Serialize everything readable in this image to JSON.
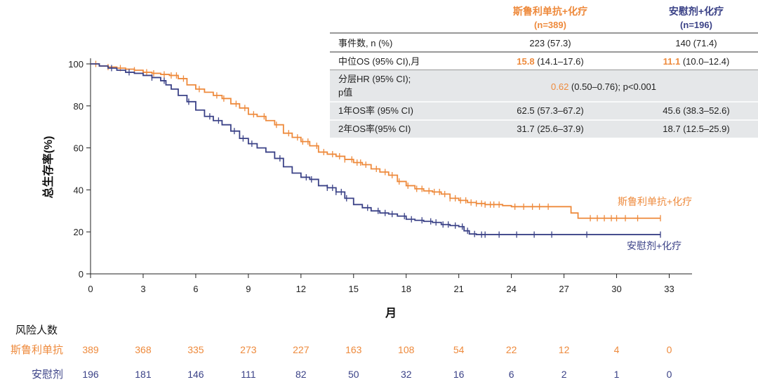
{
  "colors": {
    "orange": "#ee8a3c",
    "navy": "#3b4287",
    "grid": "#333333",
    "shade": "#e5e7e9"
  },
  "table": {
    "col1_header": "斯鲁利单抗+化疗",
    "col1_n": "(n=389)",
    "col2_header": "安慰剂+化疗",
    "col2_n": "(n=196)",
    "rows": [
      {
        "label": "事件数, n (%)",
        "v1": "223 (57.3)",
        "v2": "140 (71.4)"
      },
      {
        "label": "中位OS (95% CI),月",
        "v1_bold": "15.8",
        "v1_rest": " (14.1–17.6)",
        "v2_bold": "11.1",
        "v2_rest": " (10.0–12.4)"
      },
      {
        "label": "分层HR (95% CI);",
        "label2": "p值",
        "hr_val": "0.62",
        "hr_rest": " (0.50–0.76); p<0.001"
      },
      {
        "label": "1年OS率 (95% CI)",
        "v1": "62.5 (57.3–67.2)",
        "v2": "45.6 (38.3–52.6)"
      },
      {
        "label": "2年OS率(95% CI)",
        "v1": "31.7 (25.6–37.9)",
        "v2": "18.7 (12.5–25.9)"
      }
    ]
  },
  "chart_data": {
    "type": "line",
    "title": "",
    "xlabel": "月",
    "ylabel": "总生存率(%)",
    "xlim": [
      0,
      33
    ],
    "ylim": [
      0,
      100
    ],
    "x_ticks": [
      0,
      3,
      6,
      9,
      12,
      15,
      18,
      21,
      24,
      27,
      30,
      33
    ],
    "y_ticks": [
      0,
      20,
      40,
      60,
      80,
      100
    ],
    "series": [
      {
        "name": "斯鲁利单抗+化疗",
        "label": "斯鲁利单抗+化疗",
        "color": "#ee8a3c",
        "points": [
          [
            0,
            100
          ],
          [
            0.5,
            99
          ],
          [
            1,
            98.5
          ],
          [
            1.5,
            98
          ],
          [
            2,
            97.5
          ],
          [
            2.5,
            97
          ],
          [
            3,
            96
          ],
          [
            3.5,
            95.5
          ],
          [
            4,
            95
          ],
          [
            4.5,
            94.5
          ],
          [
            5,
            93
          ],
          [
            5.5,
            90
          ],
          [
            6,
            88
          ],
          [
            6.5,
            86.5
          ],
          [
            7,
            85
          ],
          [
            7.5,
            83.5
          ],
          [
            8,
            81
          ],
          [
            8.5,
            79
          ],
          [
            9,
            76
          ],
          [
            9.5,
            75
          ],
          [
            10,
            73
          ],
          [
            10.5,
            71
          ],
          [
            11,
            67
          ],
          [
            11.5,
            65
          ],
          [
            12,
            63
          ],
          [
            12.5,
            61
          ],
          [
            13,
            58
          ],
          [
            13.5,
            57
          ],
          [
            14,
            56
          ],
          [
            14.5,
            54.5
          ],
          [
            15,
            53
          ],
          [
            15.5,
            52
          ],
          [
            16,
            50
          ],
          [
            16.5,
            48.5
          ],
          [
            17,
            47
          ],
          [
            17.5,
            44
          ],
          [
            18,
            42
          ],
          [
            18.5,
            40.5
          ],
          [
            19,
            39.5
          ],
          [
            19.5,
            39
          ],
          [
            20,
            38
          ],
          [
            20.5,
            36
          ],
          [
            21,
            35
          ],
          [
            21.5,
            34
          ],
          [
            22,
            33.5
          ],
          [
            22.5,
            33
          ],
          [
            23,
            33
          ],
          [
            23.5,
            32.5
          ],
          [
            24,
            32
          ],
          [
            25,
            32
          ],
          [
            26,
            32
          ],
          [
            27,
            32
          ],
          [
            27.3,
            32
          ],
          [
            27.4,
            29
          ],
          [
            27.7,
            29
          ],
          [
            27.8,
            26.5
          ],
          [
            29,
            26.5
          ],
          [
            30,
            26.5
          ],
          [
            31,
            26.5
          ],
          [
            32.5,
            26.5
          ]
        ],
        "censor_x": [
          0.3,
          1,
          1.7,
          2.5,
          3.2,
          3.6,
          4.2,
          4.6,
          4.9,
          5.3,
          6.2,
          7.2,
          7.6,
          8.3,
          8.8,
          9.3,
          9.9,
          10.6,
          11.3,
          11.8,
          12.1,
          12.4,
          12.9,
          13.3,
          13.8,
          14.2,
          14.5,
          14.9,
          15.2,
          15.4,
          15.7,
          16.3,
          16.8,
          17.2,
          17.6,
          18.1,
          18.6,
          18.9,
          19.3,
          19.6,
          19.9,
          20.2,
          20.5,
          20.8,
          21.1,
          21.4,
          21.7,
          22,
          22.3,
          22.5,
          22.8,
          23,
          23.3,
          24.2,
          24.7,
          25.2,
          25.6,
          26.1,
          28.5,
          28.9,
          29.3,
          29.7,
          30,
          30.5,
          31.2,
          32.5
        ]
      },
      {
        "name": "安慰剂+化疗",
        "label": "安慰剂+化疗",
        "color": "#3b4287",
        "points": [
          [
            0,
            100
          ],
          [
            0.5,
            99
          ],
          [
            1,
            98
          ],
          [
            1.5,
            97
          ],
          [
            2,
            96
          ],
          [
            2.5,
            95.5
          ],
          [
            3,
            94.5
          ],
          [
            3.5,
            93.5
          ],
          [
            4,
            92
          ],
          [
            4.3,
            90
          ],
          [
            4.6,
            88
          ],
          [
            5,
            85
          ],
          [
            5.5,
            82
          ],
          [
            6,
            78
          ],
          [
            6.5,
            75
          ],
          [
            7,
            73
          ],
          [
            7.5,
            71
          ],
          [
            8,
            68
          ],
          [
            8.5,
            64.5
          ],
          [
            9,
            62
          ],
          [
            9.5,
            60
          ],
          [
            10,
            58
          ],
          [
            10.5,
            55
          ],
          [
            11,
            51
          ],
          [
            11.5,
            48
          ],
          [
            12,
            46
          ],
          [
            12.5,
            45
          ],
          [
            13,
            42
          ],
          [
            13.5,
            41
          ],
          [
            14,
            39
          ],
          [
            14.5,
            36
          ],
          [
            15,
            33
          ],
          [
            15.5,
            31.5
          ],
          [
            16,
            30
          ],
          [
            16.5,
            29
          ],
          [
            17,
            28.5
          ],
          [
            17.5,
            27.5
          ],
          [
            18,
            26
          ],
          [
            18.5,
            25.5
          ],
          [
            19,
            25
          ],
          [
            19.5,
            24.5
          ],
          [
            20,
            23.5
          ],
          [
            20.5,
            23
          ],
          [
            21,
            22.5
          ],
          [
            21.3,
            20.5
          ],
          [
            21.6,
            19
          ],
          [
            22,
            18.7
          ],
          [
            23,
            18.7
          ],
          [
            25,
            18.7
          ],
          [
            27,
            18.7
          ],
          [
            29,
            18.7
          ],
          [
            31,
            18.7
          ],
          [
            32.5,
            18.7
          ]
        ],
        "censor_x": [
          1.2,
          2.2,
          3.5,
          4.2,
          5.6,
          6.8,
          7.3,
          8.2,
          8.7,
          9.2,
          10.8,
          12.3,
          12.6,
          13.5,
          13.8,
          14,
          14.3,
          14.6,
          15.8,
          16.4,
          16.8,
          17.2,
          17.9,
          18.3,
          18.9,
          19.4,
          19.7,
          20.1,
          20.4,
          20.8,
          21.2,
          21.5,
          21.9,
          22.3,
          22.5,
          23.3,
          24.3,
          25.3,
          26.3,
          28.3,
          32.5
        ]
      }
    ],
    "risk_table": {
      "title": "风险人数",
      "rows": [
        {
          "name": "斯鲁利单抗",
          "values": [
            389,
            368,
            335,
            273,
            227,
            163,
            108,
            54,
            22,
            12,
            4,
            0
          ]
        },
        {
          "name": "安慰剂",
          "values": [
            196,
            181,
            146,
            111,
            82,
            50,
            32,
            16,
            6,
            2,
            1,
            0
          ]
        }
      ]
    }
  }
}
